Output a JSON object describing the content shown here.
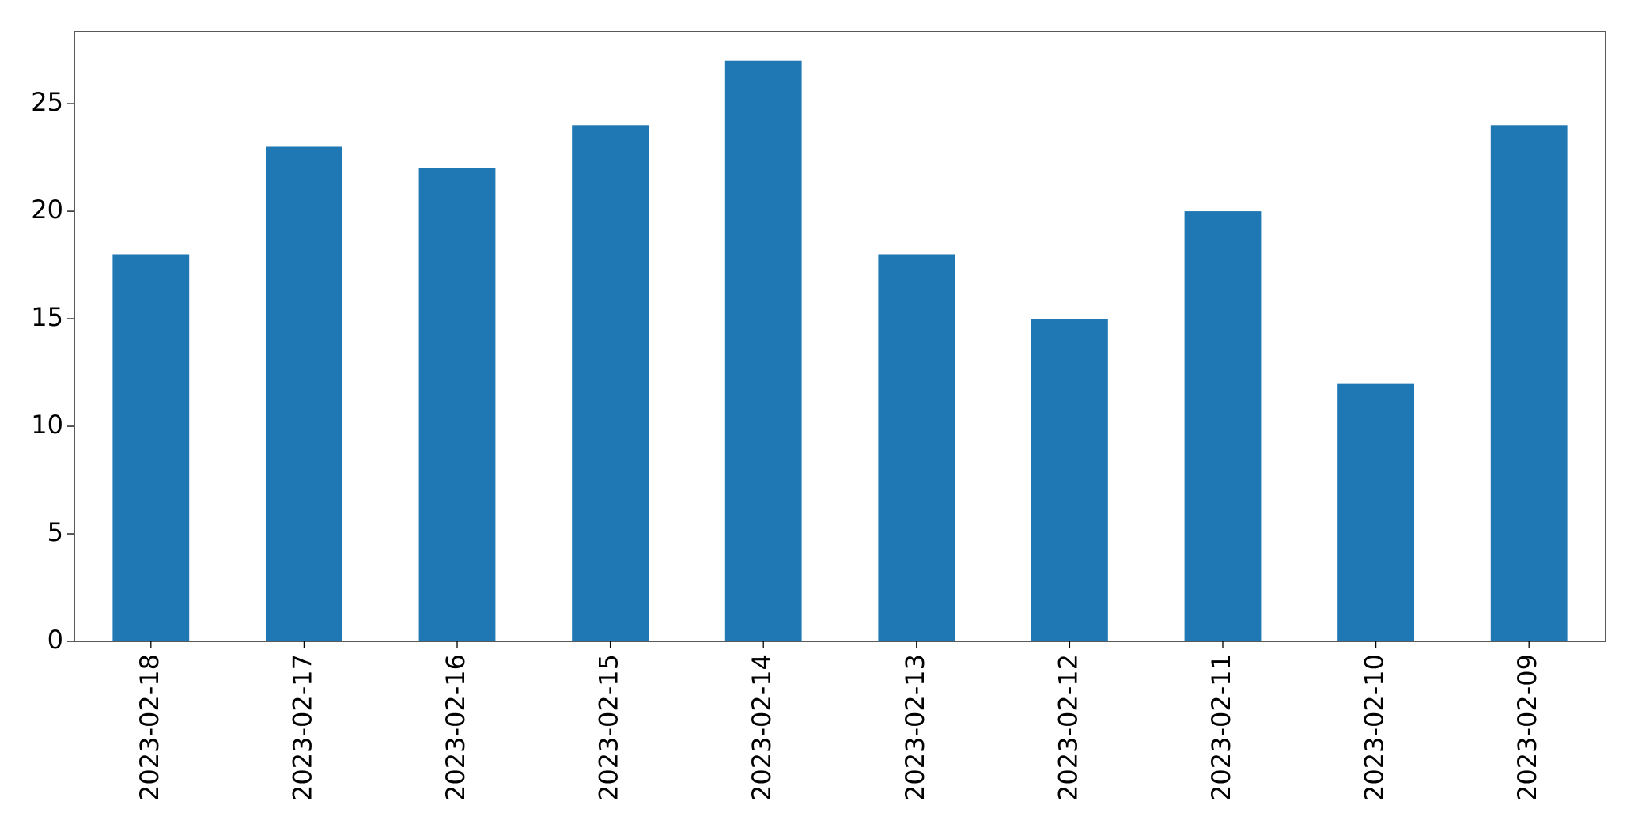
{
  "chart_data": {
    "type": "bar",
    "categories": [
      "2023-02-18",
      "2023-02-17",
      "2023-02-16",
      "2023-02-15",
      "2023-02-14",
      "2023-02-13",
      "2023-02-12",
      "2023-02-11",
      "2023-02-10",
      "2023-02-09"
    ],
    "values": [
      18,
      23,
      22,
      24,
      27,
      18,
      15,
      20,
      12,
      24
    ],
    "color": "#1f77b4",
    "ylim": [
      0,
      28.35
    ],
    "yticks": [
      0,
      5,
      10,
      15,
      20,
      25
    ],
    "grid": false
  }
}
